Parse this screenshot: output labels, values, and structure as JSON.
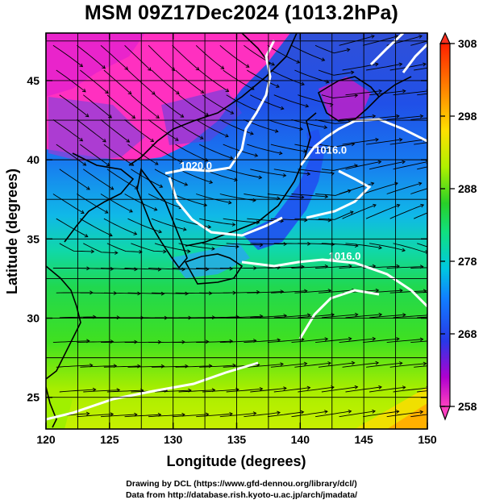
{
  "title": "MSM 09Z17Dec2024 (1013.2hPa)",
  "map": {
    "lon_range": [
      120,
      150
    ],
    "lat_range": [
      23,
      48
    ],
    "x_ticks": [
      120,
      125,
      130,
      135,
      140,
      145,
      150
    ],
    "y_ticks": [
      25,
      30,
      35,
      40,
      45
    ],
    "xlabel": "Longitude (degrees)",
    "ylabel": "Latitude  (degrees)",
    "field": "temperature (K) with wind streamlines",
    "contour_labels": [
      {
        "text": "1020.0",
        "lon": 131.8,
        "lat": 39.6
      },
      {
        "text": "1016.0",
        "lon": 142.4,
        "lat": 40.6
      },
      {
        "text": "1016.0",
        "lon": 143.5,
        "lat": 33.9
      }
    ]
  },
  "colorbar": {
    "min": 258,
    "max": 308,
    "tick_labels": [
      "308",
      "298",
      "288",
      "278",
      "268",
      "258"
    ],
    "colors": [
      "#ff40c0",
      "#a000d0",
      "#2040ff",
      "#00c0e0",
      "#10e080",
      "#30d030",
      "#c0f000",
      "#ffe000",
      "#ff8000",
      "#ff3000"
    ]
  },
  "credits": [
    "Drawing by DCL (https://www.gfd-dennou.org/library/dcl/)",
    "Data from http://database.rish.kyoto-u.ac.jp/arch/jmadata/"
  ]
}
